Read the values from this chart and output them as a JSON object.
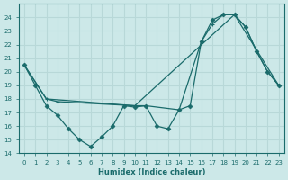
{
  "xlabel": "Humidex (Indice chaleur)",
  "xlim": [
    -0.5,
    23.5
  ],
  "ylim": [
    14,
    25
  ],
  "yticks": [
    14,
    15,
    16,
    17,
    18,
    19,
    20,
    21,
    22,
    23,
    24
  ],
  "xticks": [
    0,
    1,
    2,
    3,
    4,
    5,
    6,
    7,
    8,
    9,
    10,
    11,
    12,
    13,
    14,
    15,
    16,
    17,
    18,
    19,
    20,
    21,
    22,
    23
  ],
  "bg_color": "#cce8e8",
  "grid_color": "#b8d8d8",
  "line_color": "#1a6b6b",
  "line1_x": [
    0,
    1,
    2,
    3,
    4,
    5,
    6,
    7,
    8,
    9,
    10,
    11,
    12,
    13,
    14,
    15,
    16,
    17,
    18,
    19,
    20,
    21,
    22,
    23
  ],
  "line1_y": [
    20.5,
    19.0,
    17.5,
    16.8,
    15.8,
    15.0,
    14.5,
    15.2,
    16.0,
    17.5,
    17.4,
    17.5,
    16.0,
    15.8,
    17.2,
    17.5,
    22.2,
    23.8,
    24.2,
    24.2,
    23.3,
    21.5,
    20.0,
    19.0
  ],
  "line2_x": [
    0,
    2,
    3,
    10,
    11,
    14,
    16,
    17,
    18,
    19,
    20,
    21,
    22,
    23
  ],
  "line2_y": [
    20.5,
    18.0,
    17.8,
    17.5,
    17.5,
    17.2,
    22.2,
    23.5,
    24.2,
    24.2,
    23.3,
    21.5,
    20.0,
    19.0
  ],
  "line3_x": [
    0,
    2,
    10,
    19,
    23
  ],
  "line3_y": [
    20.5,
    18.0,
    17.5,
    24.2,
    19.0
  ]
}
